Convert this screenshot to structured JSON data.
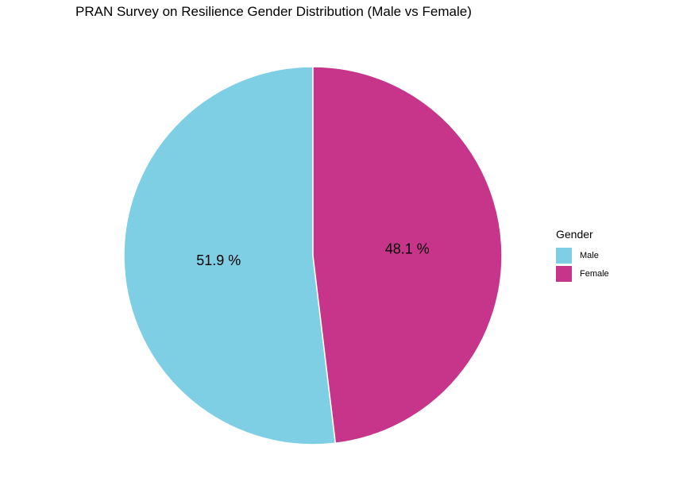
{
  "chart_data": {
    "type": "pie",
    "title": "PRAN Survey on Resilience Gender Distribution (Male vs Female)",
    "legend_title": "Gender",
    "legend_position": "right",
    "categories": [
      "Male",
      "Female"
    ],
    "values": [
      51.9,
      48.1
    ],
    "labels": [
      "51.9 %",
      "48.1 %"
    ],
    "colors": [
      "#7ecee4",
      "#c7358b"
    ]
  }
}
